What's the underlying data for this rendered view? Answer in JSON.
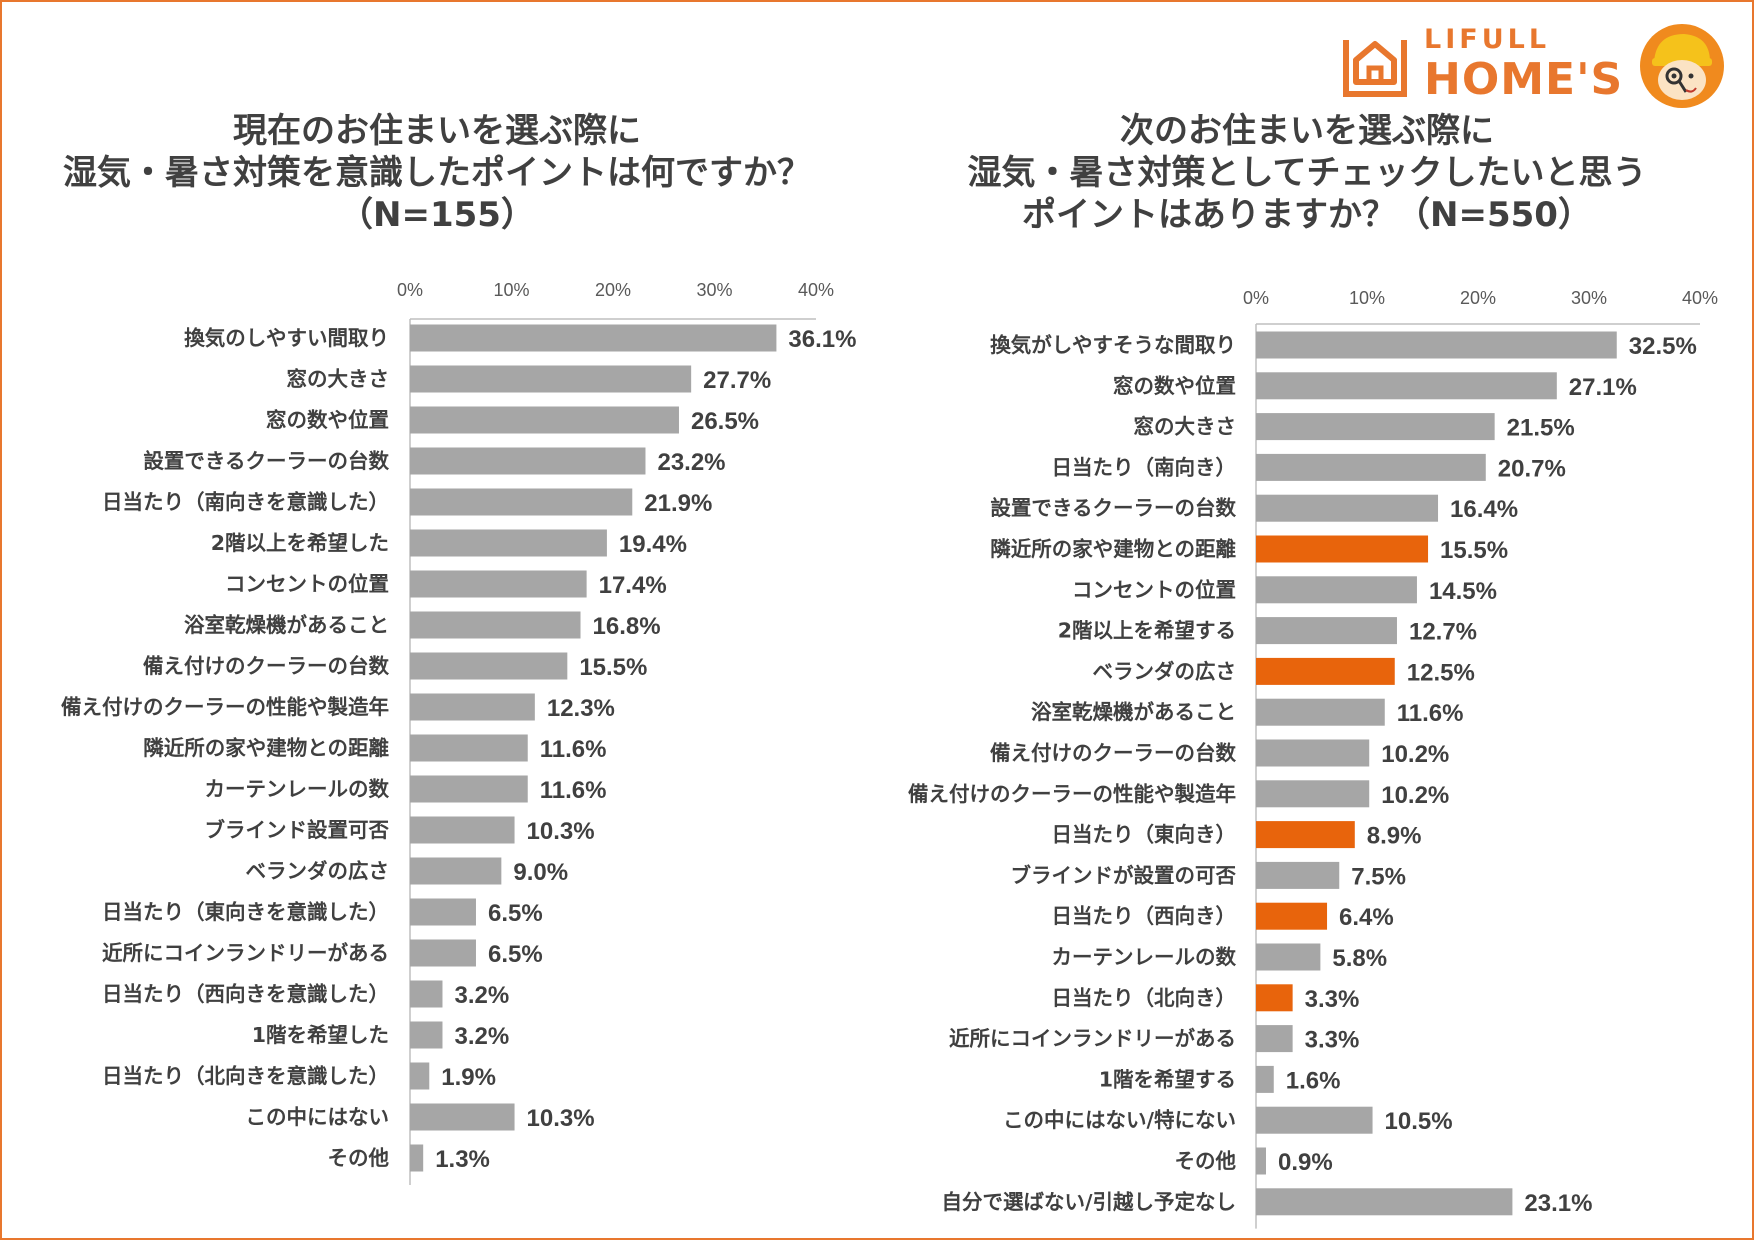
{
  "logo": {
    "line1": "LIFULL",
    "line2": "HOME'S"
  },
  "colors": {
    "bar": "#a6a6a6",
    "highlight": "#e8640c",
    "text": "#404040",
    "brand": "#e8772e"
  },
  "chart_data": [
    {
      "type": "bar",
      "orientation": "horizontal",
      "title_lines": [
        "現在のお住まいを選ぶ際に",
        "湿気・暑さ対策を意識したポイントは何ですか？",
        "（N=155）"
      ],
      "ticks": [
        "0%",
        "10%",
        "20%",
        "30%",
        "40%"
      ],
      "xlim": [
        0,
        40
      ],
      "categories": [
        "換気のしやすい間取り",
        "窓の大きさ",
        "窓の数や位置",
        "設置できるクーラーの台数",
        "日当たり（南向きを意識した）",
        "2階以上を希望した",
        "コンセントの位置",
        "浴室乾燥機があること",
        "備え付けのクーラーの台数",
        "備え付けのクーラーの性能や製造年",
        "隣近所の家や建物との距離",
        "カーテンレールの数",
        "ブラインド設置可否",
        "ベランダの広さ",
        "日当たり（東向きを意識した）",
        "近所にコインランドリーがある",
        "日当たり（西向きを意識した）",
        "1階を希望した",
        "日当たり（北向きを意識した）",
        "この中にはない",
        "その他"
      ],
      "values": [
        36.1,
        27.7,
        26.5,
        23.2,
        21.9,
        19.4,
        17.4,
        16.8,
        15.5,
        12.3,
        11.6,
        11.6,
        10.3,
        9.0,
        6.5,
        6.5,
        3.2,
        3.2,
        1.9,
        10.3,
        1.3
      ],
      "labels": [
        "36.1%",
        "27.7%",
        "26.5%",
        "23.2%",
        "21.9%",
        "19.4%",
        "17.4%",
        "16.8%",
        "15.5%",
        "12.3%",
        "11.6%",
        "11.6%",
        "10.3%",
        "9.0%",
        "6.5%",
        "6.5%",
        "3.2%",
        "3.2%",
        "1.9%",
        "10.3%",
        "1.3%"
      ],
      "highlight": []
    },
    {
      "type": "bar",
      "orientation": "horizontal",
      "title_lines": [
        "次のお住まいを選ぶ際に",
        "湿気・暑さ対策としてチェックしたいと思う",
        "ポイントはありますか？（N=550）"
      ],
      "ticks": [
        "0%",
        "10%",
        "20%",
        "30%",
        "40%"
      ],
      "xlim": [
        0,
        40
      ],
      "categories": [
        "換気がしやすそうな間取り",
        "窓の数や位置",
        "窓の大きさ",
        "日当たり（南向き）",
        "設置できるクーラーの台数",
        "隣近所の家や建物との距離",
        "コンセントの位置",
        "2階以上を希望する",
        "ベランダの広さ",
        "浴室乾燥機があること",
        "備え付けのクーラーの台数",
        "備え付けのクーラーの性能や製造年",
        "日当たり（東向き）",
        "ブラインドが設置の可否",
        "日当たり（西向き）",
        "カーテンレールの数",
        "日当たり（北向き）",
        "近所にコインランドリーがある",
        "1階を希望する",
        "この中にはない/特にない",
        "その他",
        "自分で選ばない/引越し予定なし"
      ],
      "values": [
        32.5,
        27.1,
        21.5,
        20.7,
        16.4,
        15.5,
        14.5,
        12.7,
        12.5,
        11.6,
        10.2,
        10.2,
        8.9,
        7.5,
        6.4,
        5.8,
        3.3,
        3.3,
        1.6,
        10.5,
        0.9,
        23.1
      ],
      "labels": [
        "32.5%",
        "27.1%",
        "21.5%",
        "20.7%",
        "16.4%",
        "15.5%",
        "14.5%",
        "12.7%",
        "12.5%",
        "11.6%",
        "10.2%",
        "10.2%",
        "8.9%",
        "7.5%",
        "6.4%",
        "5.8%",
        "3.3%",
        "3.3%",
        "1.6%",
        "10.5%",
        "0.9%",
        "23.1%"
      ],
      "highlight": [
        5,
        8,
        12,
        14,
        16
      ]
    }
  ]
}
